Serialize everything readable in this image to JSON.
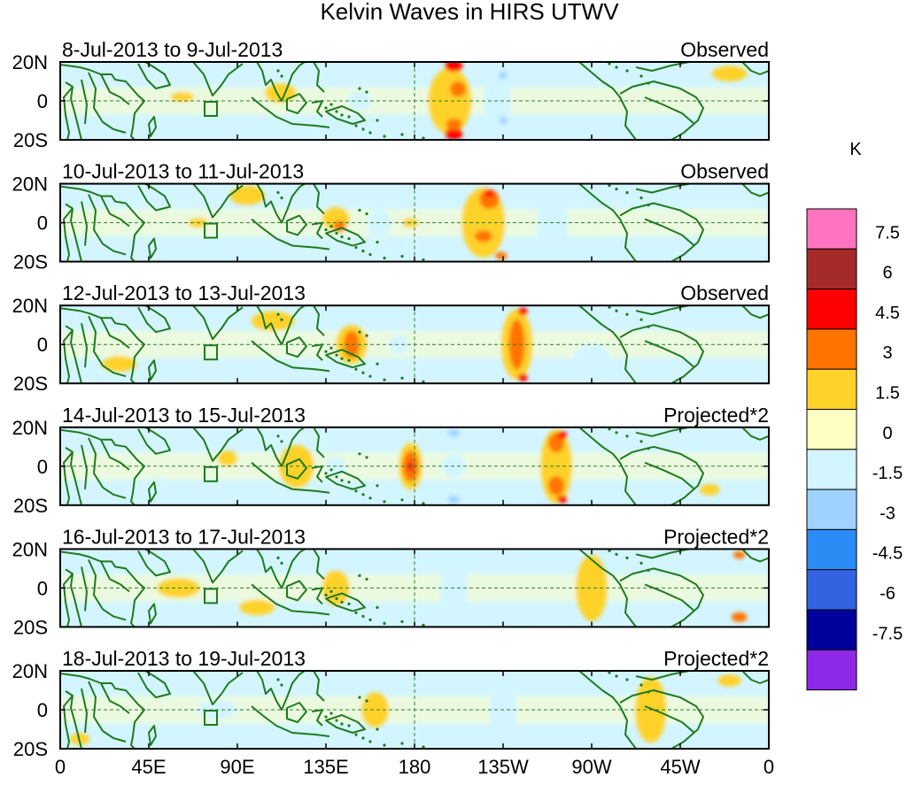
{
  "figure": {
    "title": "Kelvin Waves in HIRS UTWV",
    "x_ticks": [
      "0",
      "45E",
      "90E",
      "135E",
      "180",
      "135W",
      "90W",
      "45W",
      "0"
    ],
    "y_ticks": [
      "20N",
      "0",
      "20S"
    ]
  },
  "panels": [
    {
      "date": "8-Jul-2013 to 9-Jul-2013",
      "label": "Observed",
      "anomalies": [
        {
          "lon": 198,
          "lat": 0,
          "width": 22,
          "height": 34,
          "value": 1.5
        },
        {
          "lon": 200,
          "lat": 18,
          "width": 9,
          "height": 6,
          "value": 4.5
        },
        {
          "lon": 200,
          "lat": -17,
          "width": 9,
          "height": 6,
          "value": 4.5
        },
        {
          "lon": 202,
          "lat": 6,
          "width": 8,
          "height": 8,
          "value": 3
        },
        {
          "lon": 200,
          "lat": -12,
          "width": 8,
          "height": 6,
          "value": 3
        },
        {
          "lon": 222,
          "lat": 0,
          "width": 14,
          "height": 30,
          "value": -1.5
        },
        {
          "lon": 225,
          "lat": 13,
          "width": 4,
          "height": 4,
          "value": -3
        },
        {
          "lon": 225,
          "lat": -10,
          "width": 4,
          "height": 4,
          "value": -3
        },
        {
          "lon": 112,
          "lat": 4,
          "width": 16,
          "height": 10,
          "value": 1.5
        },
        {
          "lon": 62,
          "lat": 2,
          "width": 12,
          "height": 5,
          "value": 1.5
        },
        {
          "lon": 152,
          "lat": 0,
          "width": 12,
          "height": 10,
          "value": -1.5
        },
        {
          "lon": 340,
          "lat": 14,
          "width": 18,
          "height": 8,
          "value": 1.5
        }
      ]
    },
    {
      "date": "10-Jul-2013 to 11-Jul-2013",
      "label": "Observed",
      "anomalies": [
        {
          "lon": 215,
          "lat": 0,
          "width": 22,
          "height": 36,
          "value": 1.5
        },
        {
          "lon": 218,
          "lat": 12,
          "width": 10,
          "height": 10,
          "value": 3
        },
        {
          "lon": 218,
          "lat": 15,
          "width": 5,
          "height": 4,
          "value": 4.5
        },
        {
          "lon": 215,
          "lat": -7,
          "width": 9,
          "height": 6,
          "value": 3
        },
        {
          "lon": 224,
          "lat": -17,
          "width": 6,
          "height": 4,
          "value": 3
        },
        {
          "lon": 140,
          "lat": 2,
          "width": 14,
          "height": 12,
          "value": 1.5
        },
        {
          "lon": 142,
          "lat": -2,
          "width": 6,
          "height": 6,
          "value": 3
        },
        {
          "lon": 178,
          "lat": 0,
          "width": 8,
          "height": 5,
          "value": 1.5
        },
        {
          "lon": 162,
          "lat": 0,
          "width": 12,
          "height": 14,
          "value": -1.5
        },
        {
          "lon": 250,
          "lat": 0,
          "width": 16,
          "height": 28,
          "value": -1.5
        },
        {
          "lon": 70,
          "lat": 0,
          "width": 10,
          "height": 5,
          "value": 1.5
        },
        {
          "lon": 95,
          "lat": 14,
          "width": 18,
          "height": 10,
          "value": 1.5
        }
      ]
    },
    {
      "date": "12-Jul-2013 to 13-Jul-2013",
      "label": "Observed",
      "anomalies": [
        {
          "lon": 232,
          "lat": 0,
          "width": 16,
          "height": 36,
          "value": 1.5
        },
        {
          "lon": 232,
          "lat": 0,
          "width": 8,
          "height": 26,
          "value": 3
        },
        {
          "lon": 235,
          "lat": 17,
          "width": 5,
          "height": 4,
          "value": 4.5
        },
        {
          "lon": 235,
          "lat": -17,
          "width": 5,
          "height": 4,
          "value": 4.5
        },
        {
          "lon": 148,
          "lat": 0,
          "width": 16,
          "height": 20,
          "value": 1.5
        },
        {
          "lon": 148,
          "lat": 0,
          "width": 8,
          "height": 14,
          "value": 3
        },
        {
          "lon": 172,
          "lat": 0,
          "width": 10,
          "height": 10,
          "value": -1.5
        },
        {
          "lon": 270,
          "lat": -6,
          "width": 18,
          "height": 12,
          "value": -1.5
        },
        {
          "lon": 108,
          "lat": 12,
          "width": 22,
          "height": 10,
          "value": 1.5
        },
        {
          "lon": 30,
          "lat": -10,
          "width": 18,
          "height": 8,
          "value": 1.5
        }
      ]
    },
    {
      "date": "14-Jul-2013 to 15-Jul-2013",
      "label": "Projected*2",
      "anomalies": [
        {
          "lon": 178,
          "lat": 0,
          "width": 12,
          "height": 24,
          "value": 1.5
        },
        {
          "lon": 178,
          "lat": 0,
          "width": 8,
          "height": 16,
          "value": 3
        },
        {
          "lon": 178,
          "lat": 0,
          "width": 3,
          "height": 6,
          "value": 4.5
        },
        {
          "lon": 252,
          "lat": 0,
          "width": 16,
          "height": 38,
          "value": 1.5
        },
        {
          "lon": 252,
          "lat": 12,
          "width": 8,
          "height": 10,
          "value": 3
        },
        {
          "lon": 252,
          "lat": -10,
          "width": 8,
          "height": 10,
          "value": 3
        },
        {
          "lon": 255,
          "lat": 16,
          "width": 5,
          "height": 4,
          "value": 4.5
        },
        {
          "lon": 255,
          "lat": -17,
          "width": 5,
          "height": 4,
          "value": 4.5
        },
        {
          "lon": 200,
          "lat": 17,
          "width": 16,
          "height": 6,
          "value": -1.5
        },
        {
          "lon": 200,
          "lat": -17,
          "width": 16,
          "height": 6,
          "value": -1.5
        },
        {
          "lon": 200,
          "lat": 0,
          "width": 12,
          "height": 12,
          "value": -1.5
        },
        {
          "lon": 200,
          "lat": 17,
          "width": 6,
          "height": 4,
          "value": -3
        },
        {
          "lon": 200,
          "lat": -17,
          "width": 6,
          "height": 4,
          "value": -3
        },
        {
          "lon": 120,
          "lat": 0,
          "width": 18,
          "height": 22,
          "value": 1.5
        },
        {
          "lon": 85,
          "lat": 4,
          "width": 10,
          "height": 8,
          "value": 1.5
        },
        {
          "lon": 140,
          "lat": 0,
          "width": 10,
          "height": 10,
          "value": -1.5
        },
        {
          "lon": 50,
          "lat": -10,
          "width": 14,
          "height": 8,
          "value": -1.5
        },
        {
          "lon": 330,
          "lat": -12,
          "width": 10,
          "height": 6,
          "value": 1.5
        }
      ]
    },
    {
      "date": "16-Jul-2013 to 17-Jul-2013",
      "label": "Projected*2",
      "anomalies": [
        {
          "lon": 270,
          "lat": 0,
          "width": 16,
          "height": 34,
          "value": 1.5
        },
        {
          "lon": 200,
          "lat": 0,
          "width": 14,
          "height": 30,
          "value": -1.5
        },
        {
          "lon": 140,
          "lat": 0,
          "width": 14,
          "height": 18,
          "value": 1.5
        },
        {
          "lon": 345,
          "lat": -15,
          "width": 8,
          "height": 5,
          "value": 3
        },
        {
          "lon": 345,
          "lat": 17,
          "width": 6,
          "height": 4,
          "value": 3
        },
        {
          "lon": 60,
          "lat": 0,
          "width": 22,
          "height": 10,
          "value": 1.5
        },
        {
          "lon": 100,
          "lat": -10,
          "width": 18,
          "height": 8,
          "value": 1.5
        }
      ]
    },
    {
      "date": "18-Jul-2013 to 19-Jul-2013",
      "label": "Projected*2",
      "anomalies": [
        {
          "lon": 300,
          "lat": 0,
          "width": 16,
          "height": 34,
          "value": 1.5
        },
        {
          "lon": 225,
          "lat": 0,
          "width": 14,
          "height": 30,
          "value": -1.5
        },
        {
          "lon": 160,
          "lat": 0,
          "width": 14,
          "height": 18,
          "value": 1.5
        },
        {
          "lon": 10,
          "lat": -15,
          "width": 10,
          "height": 6,
          "value": 1.5
        },
        {
          "lon": 340,
          "lat": 15,
          "width": 12,
          "height": 6,
          "value": 1.5
        },
        {
          "lon": 80,
          "lat": 0,
          "width": 20,
          "height": 10,
          "value": -1.5
        }
      ]
    }
  ],
  "colorbar": {
    "unit": "K",
    "levels": [
      "7.5",
      "6",
      "4.5",
      "3",
      "1.5",
      "0",
      "-1.5",
      "-3",
      "-4.5",
      "-6",
      "-7.5"
    ],
    "colors": [
      "#ff73bf",
      "#a52a2a",
      "#ff0000",
      "#ff7400",
      "#ffd22a",
      "#ffffc4",
      "#d2f5ff",
      "#a0d2ff",
      "#2a8cf5",
      "#3264e1",
      "#00009b",
      "#8c28e6"
    ]
  }
}
